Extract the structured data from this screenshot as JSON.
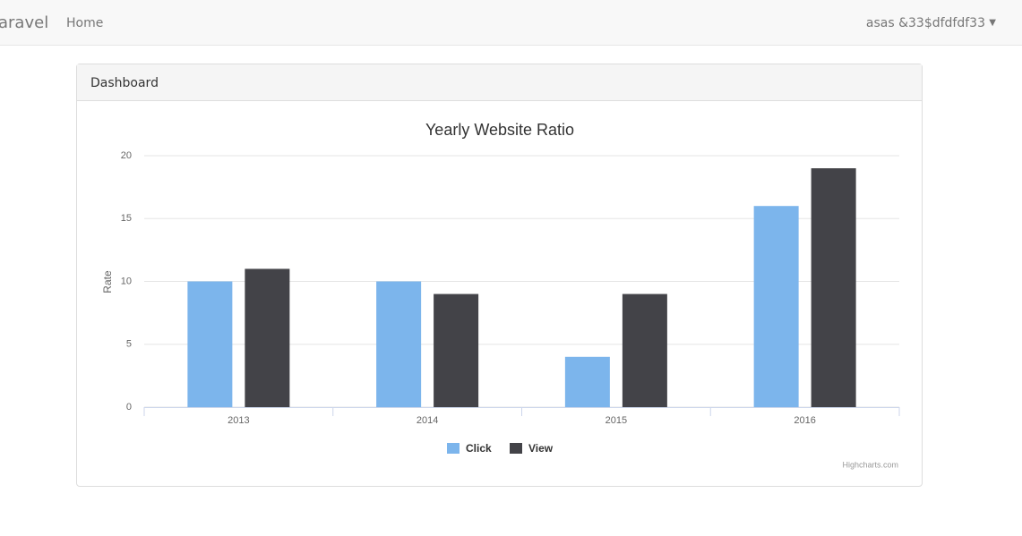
{
  "navbar": {
    "brand": "aravel",
    "links": [
      "Home"
    ],
    "user": "asas &33$dfdfdf33"
  },
  "panel": {
    "heading": "Dashboard"
  },
  "chart_data": {
    "type": "bar",
    "title": "Yearly Website Ratio",
    "y_label": "Rate",
    "categories": [
      "2013",
      "2014",
      "2015",
      "2016"
    ],
    "series": [
      {
        "name": "Click",
        "color": "#7cb5ec",
        "values": [
          10,
          10,
          4,
          16
        ]
      },
      {
        "name": "View",
        "color": "#434348",
        "values": [
          11,
          9,
          9,
          19
        ]
      }
    ],
    "ylim": [
      0,
      20
    ],
    "yticks": [
      0,
      5,
      10,
      15,
      20
    ],
    "grid": true,
    "legend": "bottom",
    "credits": "Highcharts.com"
  }
}
